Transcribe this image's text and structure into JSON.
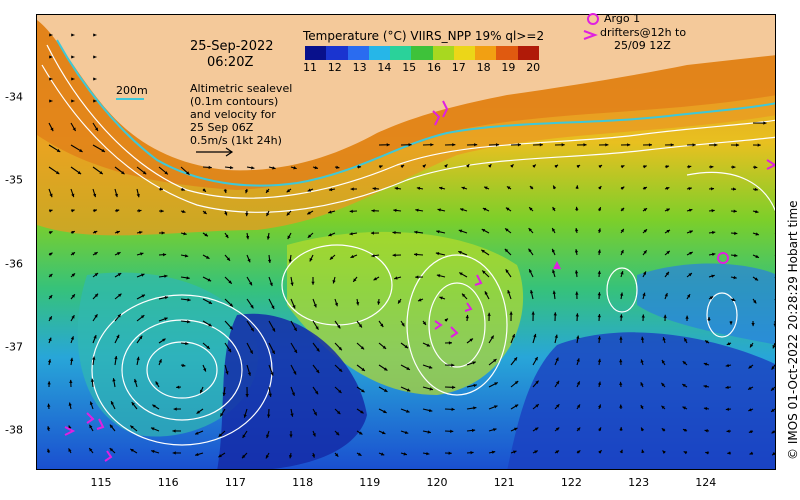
{
  "map": {
    "date": "25-Sep-2022",
    "time": "06:20Z",
    "contour_label": "200m",
    "sealevel_lines": [
      "Altimetric sealevel",
      "(0.1m contours)",
      "and velocity for",
      "25 Sep 06Z",
      "0.5m/s (1kt 24h)"
    ],
    "colorbar_title": "Temperature (°C) VIIRS_NPP 19% ql>=2",
    "colorbar_ticks": [
      "11",
      "12",
      "13",
      "14",
      "15",
      "16",
      "17",
      "18",
      "19",
      "20"
    ],
    "colorbar_colors": [
      "#08108c",
      "#1a34d0",
      "#2a6cf0",
      "#26b6e8",
      "#2ad29a",
      "#3ec23a",
      "#a8d820",
      "#ecd618",
      "#f2a012",
      "#e05a10",
      "#b01a08"
    ],
    "argo_label": "Argo 1",
    "drifter_lines": [
      "drifters@12h to",
      "25/09 12Z"
    ],
    "lon_ticks": [
      "115",
      "116",
      "117",
      "118",
      "119",
      "120",
      "121",
      "122",
      "123",
      "124"
    ],
    "lat_ticks": [
      "-34",
      "-35",
      "-36",
      "-37",
      "-38"
    ],
    "copyright": "© IMOS 01-Oct-2022 20:28:29 Hobart time",
    "colors": {
      "land": "#f4c99a",
      "shelf_contour": "#3ec8d8",
      "marker": "#e020e0"
    }
  }
}
